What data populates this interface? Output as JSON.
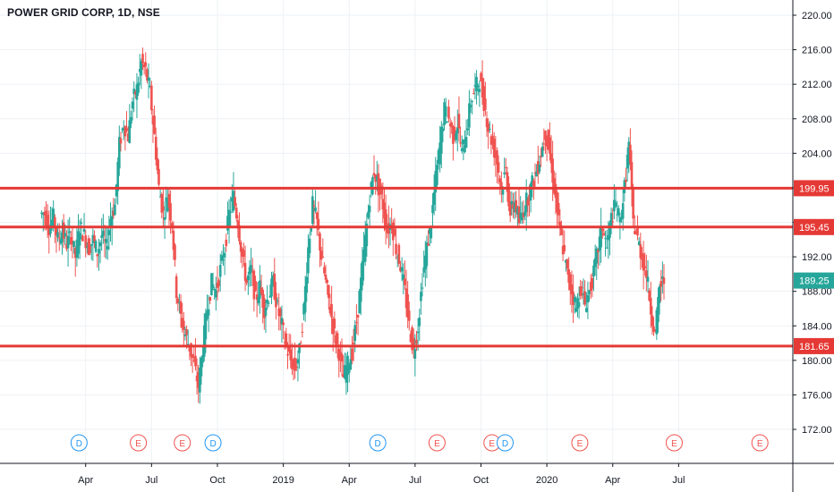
{
  "header": {
    "title": "POWER GRID CORP, 1D, NSE"
  },
  "colors": {
    "up": "#26a69a",
    "down": "#ef5350",
    "line": "#e53935",
    "dividend": "#2196f3",
    "earnings": "#ef5350",
    "grid": "#eef1f5"
  },
  "chart_data": {
    "type": "candlestick",
    "title": "POWER GRID CORP, 1D, NSE",
    "x_ticks": [
      "Apr",
      "Jul",
      "Oct",
      "2019",
      "Apr",
      "Jul",
      "Oct",
      "2020",
      "Apr",
      "Jul"
    ],
    "y_ticks": [
      172,
      176,
      180,
      184,
      188,
      192,
      196,
      200,
      204,
      208,
      212,
      216,
      220
    ],
    "ylim": [
      169,
      222
    ],
    "last_price": 189.25,
    "horizontal_lines": [
      199.95,
      195.45,
      181.65
    ],
    "events": [
      {
        "type": "D",
        "month": 1.7
      },
      {
        "type": "E",
        "month": 4.4
      },
      {
        "type": "E",
        "month": 6.4
      },
      {
        "type": "D",
        "month": 7.8
      },
      {
        "type": "D",
        "month": 15.3
      },
      {
        "type": "E",
        "month": 18.0
      },
      {
        "type": "E",
        "month": 20.5
      },
      {
        "type": "D",
        "month": 21.1
      },
      {
        "type": "E",
        "month": 24.5
      },
      {
        "type": "E",
        "month": 28.8
      },
      {
        "type": "E",
        "month": 32.7
      }
    ],
    "candles": [
      [
        0.0,
        197.0
      ],
      [
        0.2,
        195.5
      ],
      [
        0.4,
        196.5
      ],
      [
        0.6,
        194.0
      ],
      [
        0.8,
        195.0
      ],
      [
        1.0,
        193.5
      ],
      [
        1.2,
        194.5
      ],
      [
        1.4,
        192.0
      ],
      [
        1.6,
        195.5
      ],
      [
        1.8,
        194.5
      ],
      [
        2.0,
        193.0
      ],
      [
        2.2,
        194.0
      ],
      [
        2.4,
        192.5
      ],
      [
        2.6,
        194.5
      ],
      [
        2.8,
        193.0
      ],
      [
        3.0,
        196.5
      ],
      [
        3.2,
        198.0
      ],
      [
        3.4,
        205.0
      ],
      [
        3.6,
        207.5
      ],
      [
        3.8,
        206.0
      ],
      [
        4.0,
        210.0
      ],
      [
        4.2,
        211.5
      ],
      [
        4.4,
        214.5
      ],
      [
        4.6,
        213.5
      ],
      [
        4.8,
        211.0
      ],
      [
        5.0,
        206.0
      ],
      [
        5.2,
        200.0
      ],
      [
        5.4,
        197.0
      ],
      [
        5.6,
        199.0
      ],
      [
        5.8,
        196.0
      ],
      [
        6.0,
        188.0
      ],
      [
        6.2,
        185.0
      ],
      [
        6.4,
        183.0
      ],
      [
        6.6,
        181.5
      ],
      [
        6.8,
        179.5
      ],
      [
        7.0,
        177.0
      ],
      [
        7.2,
        181.5
      ],
      [
        7.4,
        186.0
      ],
      [
        7.6,
        189.0
      ],
      [
        7.8,
        188.0
      ],
      [
        8.0,
        190.5
      ],
      [
        8.2,
        193.0
      ],
      [
        8.4,
        197.0
      ],
      [
        8.6,
        199.0
      ],
      [
        8.8,
        196.0
      ],
      [
        9.0,
        192.0
      ],
      [
        9.2,
        189.0
      ],
      [
        9.4,
        190.5
      ],
      [
        9.6,
        187.0
      ],
      [
        9.8,
        188.5
      ],
      [
        10.0,
        186.0
      ],
      [
        10.2,
        187.5
      ],
      [
        10.4,
        189.0
      ],
      [
        10.6,
        186.0
      ],
      [
        10.8,
        184.0
      ],
      [
        11.0,
        181.5
      ],
      [
        11.2,
        180.0
      ],
      [
        11.4,
        179.0
      ],
      [
        11.6,
        181.0
      ],
      [
        11.8,
        186.0
      ],
      [
        12.0,
        193.0
      ],
      [
        12.2,
        198.0
      ],
      [
        12.4,
        196.0
      ],
      [
        12.6,
        192.0
      ],
      [
        12.8,
        189.0
      ],
      [
        13.0,
        186.0
      ],
      [
        13.2,
        183.0
      ],
      [
        13.4,
        181.0
      ],
      [
        13.6,
        178.0
      ],
      [
        13.8,
        179.5
      ],
      [
        14.0,
        181.0
      ],
      [
        14.2,
        184.5
      ],
      [
        14.4,
        189.0
      ],
      [
        14.6,
        194.0
      ],
      [
        14.8,
        199.0
      ],
      [
        15.0,
        202.0
      ],
      [
        15.2,
        200.0
      ],
      [
        15.4,
        198.0
      ],
      [
        15.6,
        195.0
      ],
      [
        15.8,
        196.0
      ],
      [
        16.0,
        193.0
      ],
      [
        16.2,
        191.0
      ],
      [
        16.4,
        188.0
      ],
      [
        16.6,
        184.0
      ],
      [
        16.8,
        181.0
      ],
      [
        17.0,
        184.0
      ],
      [
        17.2,
        189.5
      ],
      [
        17.4,
        193.0
      ],
      [
        17.6,
        196.0
      ],
      [
        17.8,
        201.0
      ],
      [
        18.0,
        205.0
      ],
      [
        18.2,
        209.0
      ],
      [
        18.4,
        208.0
      ],
      [
        18.6,
        206.0
      ],
      [
        18.8,
        207.5
      ],
      [
        19.0,
        204.0
      ],
      [
        19.2,
        206.5
      ],
      [
        19.4,
        210.0
      ],
      [
        19.6,
        211.5
      ],
      [
        19.8,
        212.5
      ],
      [
        20.0,
        210.0
      ],
      [
        20.2,
        207.0
      ],
      [
        20.4,
        205.0
      ],
      [
        20.6,
        203.0
      ],
      [
        20.8,
        200.0
      ],
      [
        21.0,
        202.0
      ],
      [
        21.2,
        197.0
      ],
      [
        21.4,
        198.5
      ],
      [
        21.6,
        196.0
      ],
      [
        21.8,
        197.5
      ],
      [
        22.0,
        199.0
      ],
      [
        22.2,
        200.5
      ],
      [
        22.4,
        202.0
      ],
      [
        22.6,
        204.0
      ],
      [
        22.8,
        206.5
      ],
      [
        23.0,
        204.0
      ],
      [
        23.2,
        200.0
      ],
      [
        23.4,
        196.0
      ],
      [
        23.6,
        193.0
      ],
      [
        23.8,
        190.0
      ],
      [
        24.0,
        188.0
      ],
      [
        24.2,
        186.0
      ],
      [
        24.4,
        188.5
      ],
      [
        24.6,
        186.5
      ],
      [
        24.8,
        188.0
      ],
      [
        25.0,
        190.0
      ],
      [
        25.2,
        193.0
      ],
      [
        25.4,
        195.5
      ],
      [
        25.6,
        193.0
      ],
      [
        25.8,
        196.5
      ],
      [
        26.0,
        198.0
      ],
      [
        26.2,
        196.0
      ],
      [
        26.4,
        200.0
      ],
      [
        26.6,
        205.0
      ],
      [
        26.8,
        196.0
      ],
      [
        27.0,
        194.0
      ],
      [
        27.2,
        192.0
      ],
      [
        27.4,
        190.0
      ],
      [
        27.6,
        186.0
      ],
      [
        27.8,
        183.0
      ],
      [
        28.0,
        188.5
      ],
      [
        28.2,
        189.25
      ]
    ]
  }
}
